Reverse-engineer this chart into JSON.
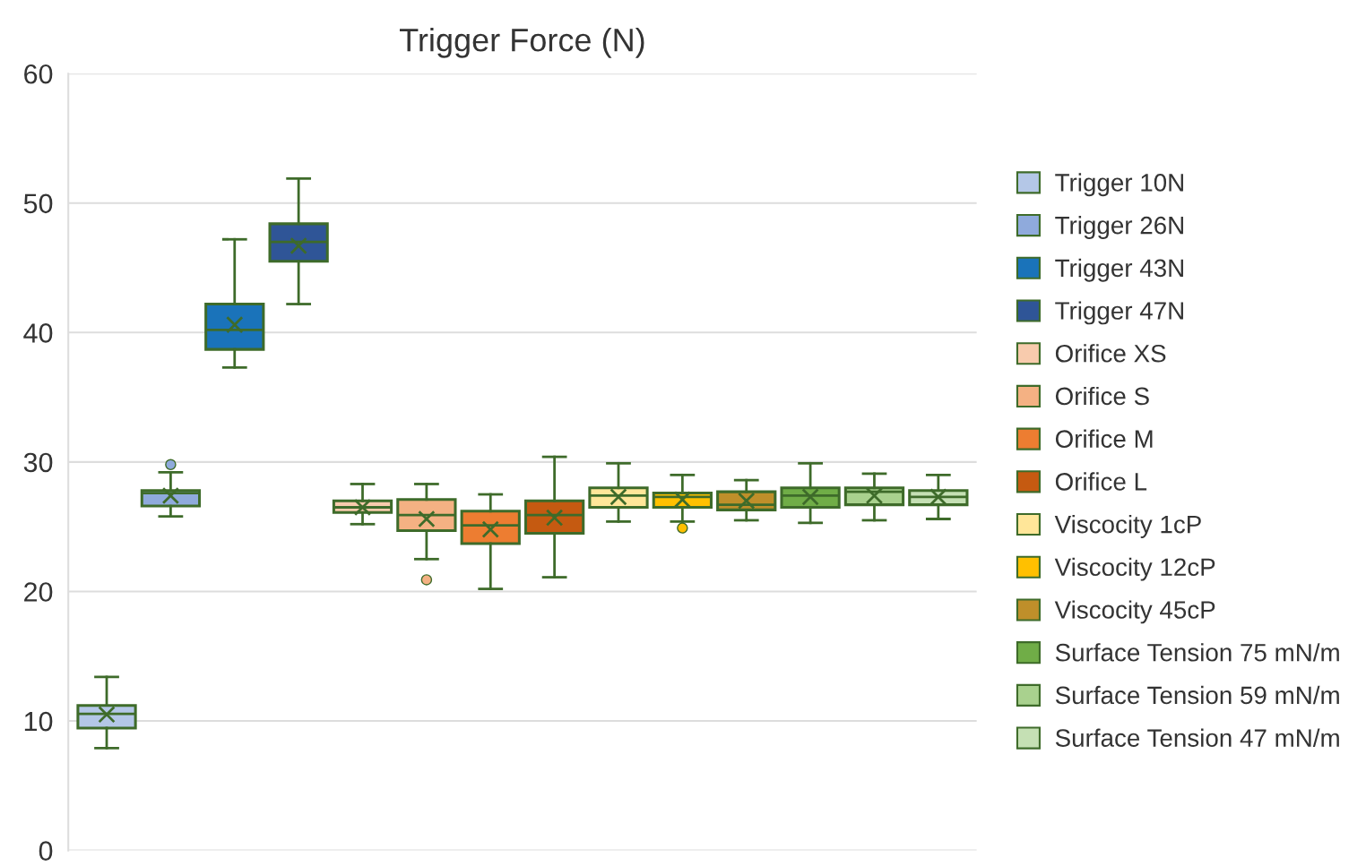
{
  "chart_data": {
    "type": "box",
    "title": "Trigger Force (N)",
    "categories": [
      null
    ],
    "ylim": [
      0,
      60
    ],
    "yticks": [
      0,
      10,
      20,
      30,
      40,
      50,
      60
    ],
    "grid": "y",
    "legend": "right",
    "tick_labels": "y",
    "marker": "cross",
    "series": [
      {
        "name": "Trigger 10N",
        "color": "#b4c7e7",
        "boxes": [
          {
            "low": 7.9,
            "q1": 9.45,
            "median": 10.55,
            "q3": 11.2,
            "high": 13.4,
            "mean": 10.5
          }
        ]
      },
      {
        "name": "Trigger 26N",
        "color": "#8faadc",
        "boxes": [
          {
            "low": 25.8,
            "q1": 26.6,
            "median": 27.6,
            "q3": 27.8,
            "high": 29.2,
            "mean": 27.4,
            "outliers": [
              29.8
            ]
          }
        ]
      },
      {
        "name": "Trigger 43N",
        "color": "#1a73ba",
        "boxes": [
          {
            "low": 37.3,
            "q1": 38.7,
            "median": 40.2,
            "q3": 42.2,
            "high": 47.2,
            "mean": 40.6
          }
        ]
      },
      {
        "name": "Trigger 47N",
        "color": "#2f5597",
        "boxes": [
          {
            "low": 42.2,
            "q1": 45.5,
            "median": 47.0,
            "q3": 48.4,
            "high": 51.9,
            "mean": 46.7
          }
        ]
      },
      {
        "name": "Orifice XS",
        "color": "#f8cbad",
        "boxes": [
          {
            "low": 25.2,
            "q1": 26.1,
            "median": 26.5,
            "q3": 27.0,
            "high": 28.3,
            "mean": 26.5
          }
        ]
      },
      {
        "name": "Orifice S",
        "color": "#f4b183",
        "boxes": [
          {
            "low": 22.5,
            "q1": 24.7,
            "median": 25.9,
            "q3": 27.1,
            "high": 28.3,
            "mean": 25.6,
            "outliers": [
              20.9
            ]
          }
        ]
      },
      {
        "name": "Orifice M",
        "color": "#ed7d31",
        "boxes": [
          {
            "low": 20.2,
            "q1": 23.7,
            "median": 25.1,
            "q3": 26.2,
            "high": 27.5,
            "mean": 24.8
          }
        ]
      },
      {
        "name": "Orifice L",
        "color": "#c55a11",
        "boxes": [
          {
            "low": 21.1,
            "q1": 24.5,
            "median": 25.9,
            "q3": 27.0,
            "high": 30.4,
            "mean": 25.7
          }
        ]
      },
      {
        "name": "Viscocity 1cP",
        "color": "#ffe699",
        "boxes": [
          {
            "low": 25.4,
            "q1": 26.5,
            "median": 27.4,
            "q3": 28.0,
            "high": 29.9,
            "mean": 27.3
          }
        ]
      },
      {
        "name": "Viscocity 12cP",
        "color": "#ffc000",
        "boxes": [
          {
            "low": 25.4,
            "q1": 26.5,
            "median": 27.3,
            "q3": 27.6,
            "high": 29.0,
            "mean": 27.1,
            "outliers": [
              24.9
            ]
          }
        ]
      },
      {
        "name": "Viscocity 45cP",
        "color": "#bf8f2a",
        "boxes": [
          {
            "low": 25.5,
            "q1": 26.3,
            "median": 26.7,
            "q3": 27.7,
            "high": 28.6,
            "mean": 27.0
          }
        ]
      },
      {
        "name": "Surface Tension 75 mN/m",
        "color": "#70ad47",
        "boxes": [
          {
            "low": 25.3,
            "q1": 26.5,
            "median": 27.4,
            "q3": 28.0,
            "high": 29.9,
            "mean": 27.3
          }
        ]
      },
      {
        "name": "Surface Tension 59 mN/m",
        "color": "#a9d18e",
        "boxes": [
          {
            "low": 25.5,
            "q1": 26.7,
            "median": 27.7,
            "q3": 28.0,
            "high": 29.1,
            "mean": 27.4
          }
        ]
      },
      {
        "name": "Surface Tension 47 mN/m",
        "color": "#c5e0b4",
        "boxes": [
          {
            "low": 25.6,
            "q1": 26.7,
            "median": 27.3,
            "q3": 27.8,
            "high": 29.0,
            "mean": 27.3
          }
        ]
      }
    ]
  }
}
